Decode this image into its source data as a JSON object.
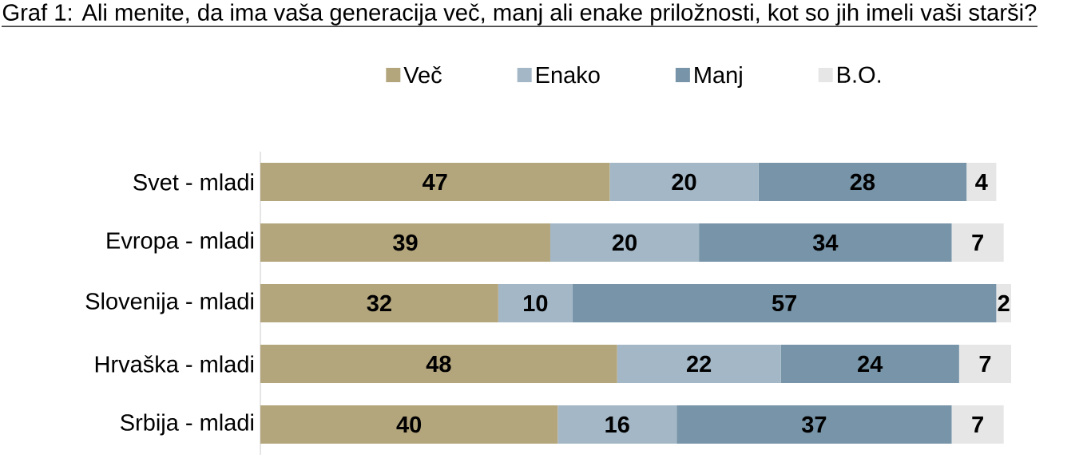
{
  "chart_data": {
    "type": "bar",
    "orientation": "horizontal",
    "stacked": true,
    "data_labels": true,
    "legend": "top",
    "title": "Graf 1: Ali menite, da ima vaša generacija več, manj ali enake priložnosti, kot so jih imeli vaši starši?",
    "categories": [
      "Svet - mladi",
      "Evropa - mladi",
      "Slovenija - mladi",
      "Hrvaška - mladi",
      "Srbija - mladi"
    ],
    "series": [
      {
        "name": "Več",
        "color": "#b3a57c",
        "values": [
          47,
          39,
          32,
          48,
          40
        ]
      },
      {
        "name": "Enako",
        "color": "#a3b7c6",
        "values": [
          20,
          20,
          10,
          22,
          16
        ]
      },
      {
        "name": "Manj",
        "color": "#7794a8",
        "values": [
          28,
          34,
          57,
          24,
          37
        ]
      },
      {
        "name": "B.O.",
        "color": "#e6e6e6",
        "values": [
          4,
          7,
          2,
          7,
          7
        ]
      }
    ]
  }
}
